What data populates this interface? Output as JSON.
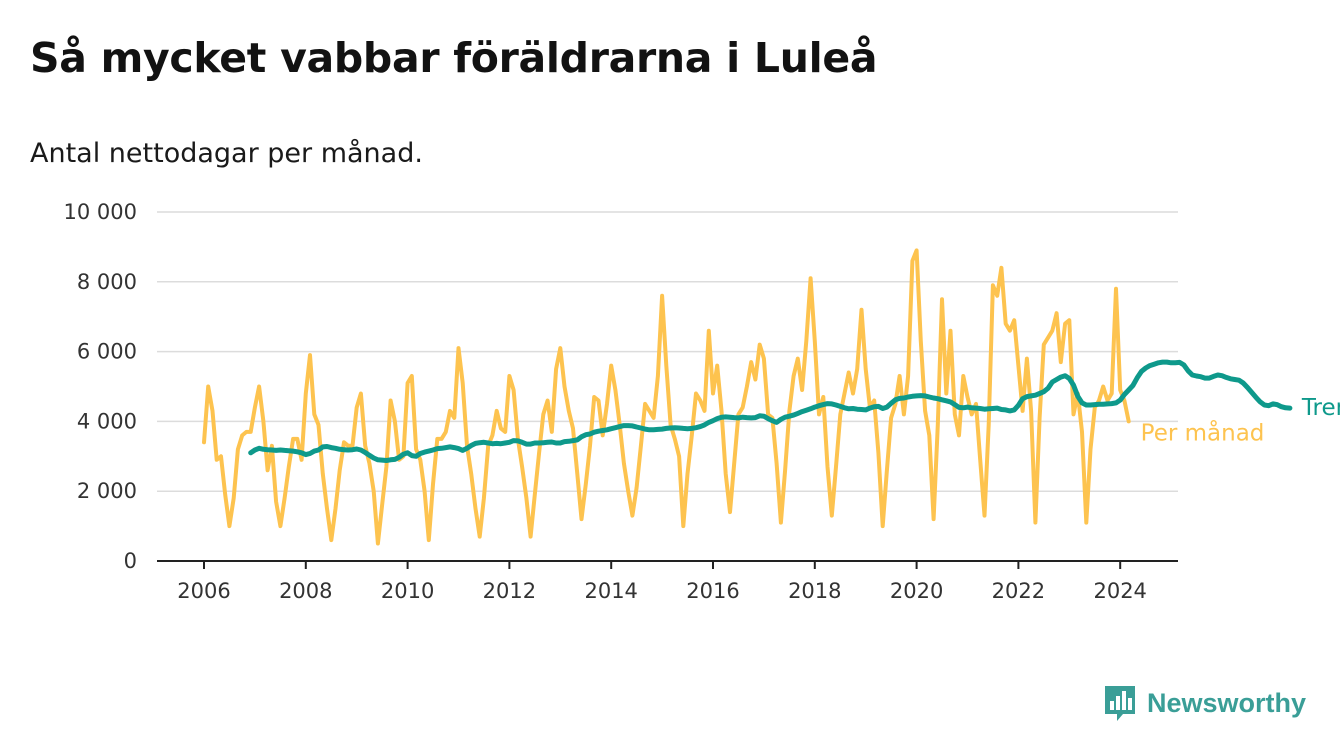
{
  "title": "Så mycket vabbar föräldrarna i Luleå",
  "subtitle": "Antal nettodagar per månad.",
  "brand": {
    "name": "Newsworthy",
    "icon": "bar-chart-speech-bubble-icon",
    "color": "#3a9e97"
  },
  "chart_data": {
    "type": "line",
    "title": "Så mycket vabbar föräldrarna i Luleå",
    "subtitle": "Antal nettodagar per månad.",
    "xlabel": "",
    "ylabel": "",
    "xlim": [
      2006,
      2025
    ],
    "ylim": [
      0,
      10000
    ],
    "x_ticks": [
      2006,
      2008,
      2010,
      2012,
      2014,
      2016,
      2018,
      2020,
      2022,
      2024
    ],
    "y_ticks": [
      0,
      2000,
      4000,
      6000,
      8000,
      10000
    ],
    "y_tick_labels": [
      "0",
      "2 000",
      "4 000",
      "6 000",
      "8 000",
      "10 000"
    ],
    "grid": "horizontal",
    "legend": "inline-right",
    "series": [
      {
        "name": "Per månad",
        "color": "#fdc34f",
        "x_start": "2006-01",
        "step": "month",
        "values": [
          3400,
          5000,
          4300,
          2900,
          3000,
          1900,
          1000,
          1800,
          3200,
          3600,
          3700,
          3700,
          4400,
          5000,
          4000,
          2600,
          3300,
          1700,
          1000,
          1800,
          2700,
          3500,
          3500,
          2900,
          4800,
          5900,
          4200,
          3900,
          2500,
          1500,
          600,
          1500,
          2600,
          3400,
          3300,
          3300,
          4400,
          4800,
          3300,
          2800,
          2000,
          500,
          1600,
          2700,
          4600,
          4000,
          2900,
          3000,
          5100,
          5300,
          3200,
          2900,
          2000,
          600,
          2200,
          3500,
          3500,
          3700,
          4300,
          4100,
          6100,
          5100,
          3300,
          2500,
          1500,
          700,
          1800,
          3300,
          3600,
          4300,
          3800,
          3700,
          5300,
          4900,
          3500,
          2700,
          1800,
          700,
          1900,
          3100,
          4200,
          4600,
          3700,
          5500,
          6100,
          5000,
          4300,
          3800,
          2500,
          1200,
          2200,
          3300,
          4700,
          4600,
          3600,
          4500,
          5600,
          4900,
          3900,
          2800,
          2000,
          1300,
          2100,
          3300,
          4500,
          4300,
          4100,
          5300,
          7600,
          5600,
          3900,
          3500,
          3000,
          1000,
          2500,
          3600,
          4800,
          4600,
          4300,
          6600,
          4800,
          5600,
          4300,
          2500,
          1400,
          2800,
          4200,
          4400,
          5000,
          5700,
          5200,
          6200,
          5800,
          4200,
          4100,
          2800,
          1100,
          2600,
          4300,
          5300,
          5800,
          4900,
          6300,
          8100,
          6300,
          4200,
          4700,
          2700,
          1300,
          2700,
          4200,
          4800,
          5400,
          4800,
          5500,
          7200,
          5500,
          4400,
          4600,
          3100,
          1000,
          2600,
          4100,
          4500,
          5300,
          4200,
          5300,
          8600,
          8900,
          6300,
          4300,
          3600,
          1200,
          3900,
          7500,
          4800,
          6600,
          4200,
          3600,
          5300,
          4700,
          4200,
          4500,
          2900,
          1300,
          3900,
          7900,
          7600,
          8400,
          6800,
          6600,
          6900,
          5600,
          4300,
          5800,
          4300,
          1100,
          4100,
          6200,
          6400,
          6600,
          7100,
          5700,
          6800,
          6900,
          4200,
          4800,
          3700,
          1100,
          3200,
          4400,
          4600,
          5000,
          4600,
          4800,
          7800,
          4900,
          4600,
          4000
        ]
      },
      {
        "name": "Trend",
        "color": "#0e998b",
        "x_start": "2006-12",
        "step": "month",
        "values": [
          3100,
          3180,
          3230,
          3200,
          3190,
          3180,
          3170,
          3180,
          3170,
          3160,
          3150,
          3130,
          3100,
          3050,
          3080,
          3150,
          3180,
          3270,
          3280,
          3250,
          3230,
          3200,
          3190,
          3180,
          3190,
          3210,
          3180,
          3110,
          3030,
          2950,
          2900,
          2890,
          2880,
          2900,
          2910,
          2970,
          3060,
          3100,
          3020,
          3000,
          3080,
          3120,
          3150,
          3180,
          3220,
          3230,
          3250,
          3270,
          3250,
          3220,
          3170,
          3230,
          3310,
          3370,
          3390,
          3400,
          3380,
          3360,
          3370,
          3360,
          3380,
          3400,
          3450,
          3440,
          3400,
          3350,
          3350,
          3380,
          3380,
          3390,
          3400,
          3410,
          3380,
          3380,
          3420,
          3430,
          3450,
          3470,
          3560,
          3620,
          3640,
          3690,
          3720,
          3740,
          3760,
          3790,
          3820,
          3850,
          3880,
          3880,
          3870,
          3840,
          3810,
          3780,
          3760,
          3760,
          3770,
          3780,
          3800,
          3810,
          3820,
          3810,
          3800,
          3790,
          3800,
          3820,
          3850,
          3900,
          3970,
          4020,
          4080,
          4120,
          4130,
          4120,
          4110,
          4100,
          4120,
          4110,
          4100,
          4110,
          4160,
          4150,
          4080,
          4020,
          3970,
          4060,
          4120,
          4150,
          4180,
          4230,
          4280,
          4320,
          4360,
          4410,
          4450,
          4480,
          4510,
          4500,
          4470,
          4430,
          4390,
          4360,
          4370,
          4350,
          4340,
          4330,
          4380,
          4420,
          4430,
          4370,
          4410,
          4520,
          4620,
          4660,
          4670,
          4700,
          4720,
          4730,
          4740,
          4730,
          4700,
          4670,
          4650,
          4620,
          4590,
          4560,
          4480,
          4400,
          4390,
          4410,
          4390,
          4380,
          4370,
          4350,
          4360,
          4370,
          4380,
          4340,
          4330,
          4300,
          4330,
          4460,
          4650,
          4710,
          4730,
          4750,
          4800,
          4850,
          4950,
          5130,
          5200,
          5270,
          5310,
          5230,
          5040,
          4720,
          4530,
          4470,
          4470,
          4480,
          4490,
          4490,
          4500,
          4510,
          4530,
          4610,
          4770,
          4900,
          5030,
          5250,
          5430,
          5530,
          5600,
          5640,
          5680,
          5700,
          5700,
          5680,
          5680,
          5690,
          5620,
          5450,
          5330,
          5300,
          5280,
          5240,
          5240,
          5290,
          5330,
          5310,
          5260,
          5220,
          5200,
          5180,
          5100,
          4970,
          4830,
          4690,
          4560,
          4470,
          4450,
          4500,
          4480,
          4420,
          4390,
          4380
        ]
      }
    ]
  }
}
